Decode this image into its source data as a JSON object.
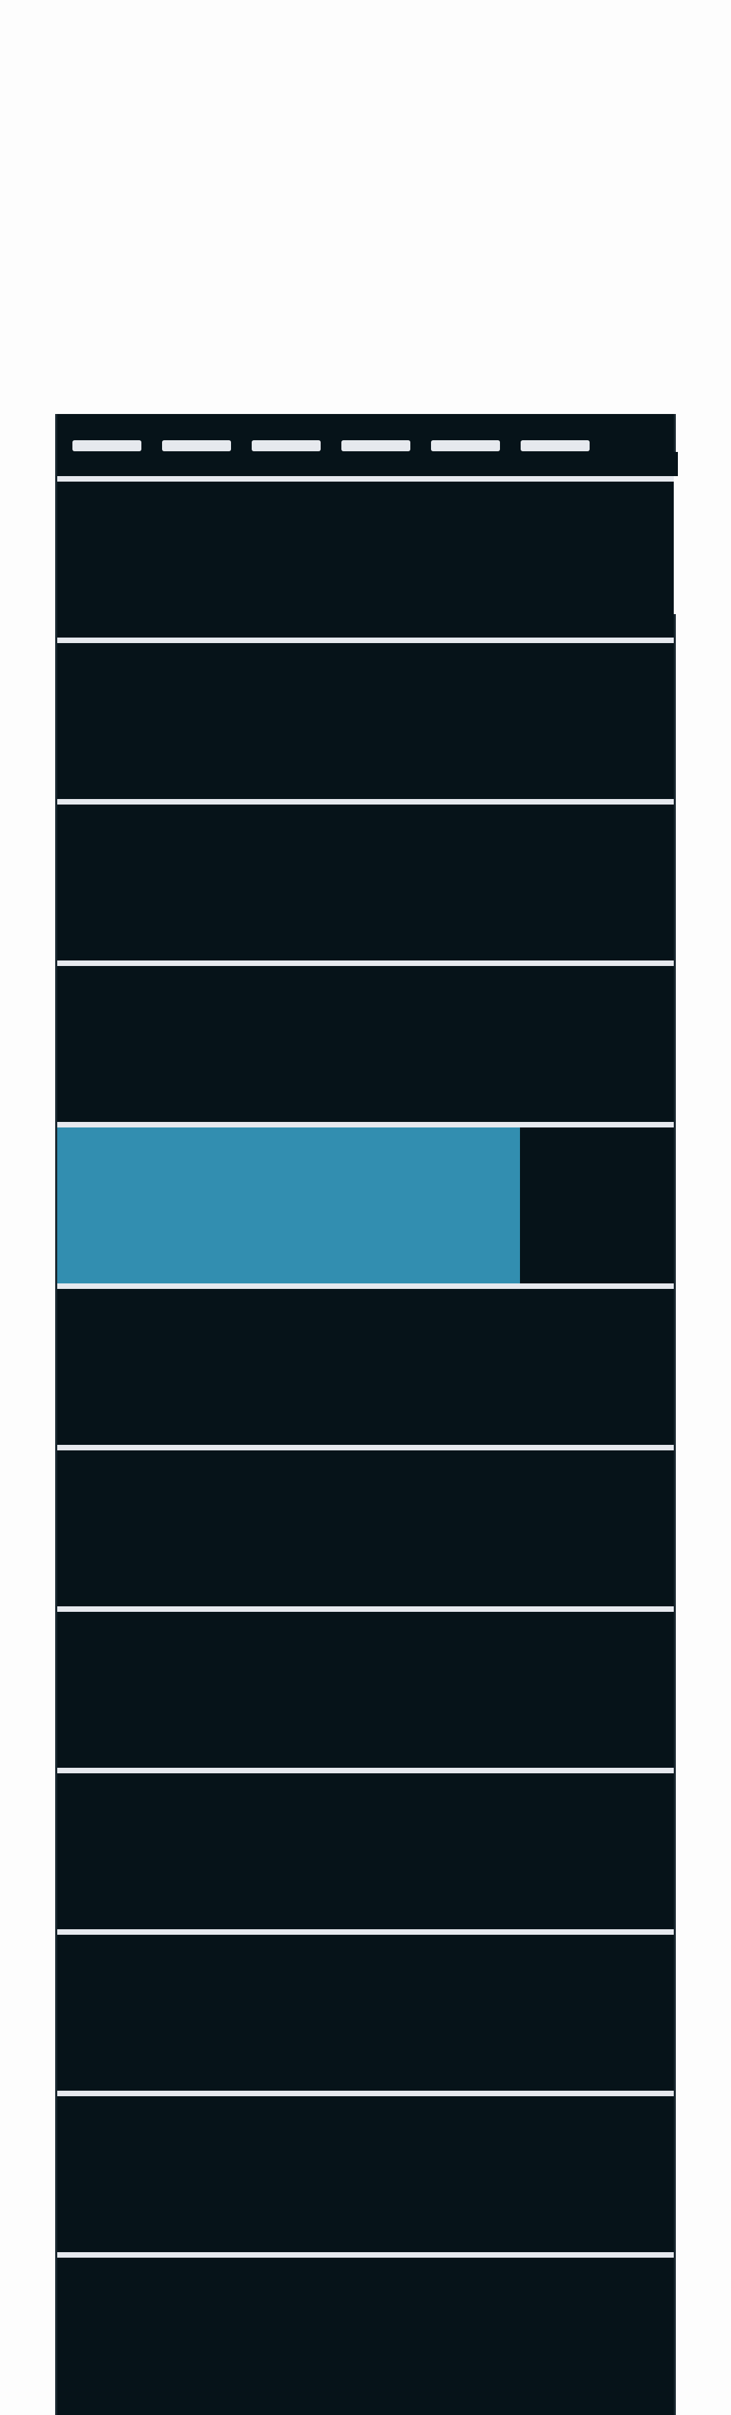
{
  "colors": {
    "panel_background": "#061319",
    "separator": "#e6e9ee",
    "accent": "#328eb0",
    "page_background": "#fdfdfd"
  },
  "tabs": [
    "",
    "",
    "",
    "",
    "",
    ""
  ],
  "rows": [
    {
      "selected": false,
      "progress": 0
    },
    {
      "selected": false,
      "progress": 0
    },
    {
      "selected": false,
      "progress": 0
    },
    {
      "selected": false,
      "progress": 0
    },
    {
      "selected": true,
      "progress": 0.75
    },
    {
      "selected": false,
      "progress": 0
    },
    {
      "selected": false,
      "progress": 0
    },
    {
      "selected": false,
      "progress": 0
    },
    {
      "selected": false,
      "progress": 0
    },
    {
      "selected": false,
      "progress": 0
    },
    {
      "selected": false,
      "progress": 0
    },
    {
      "selected": false,
      "progress": 0
    }
  ]
}
